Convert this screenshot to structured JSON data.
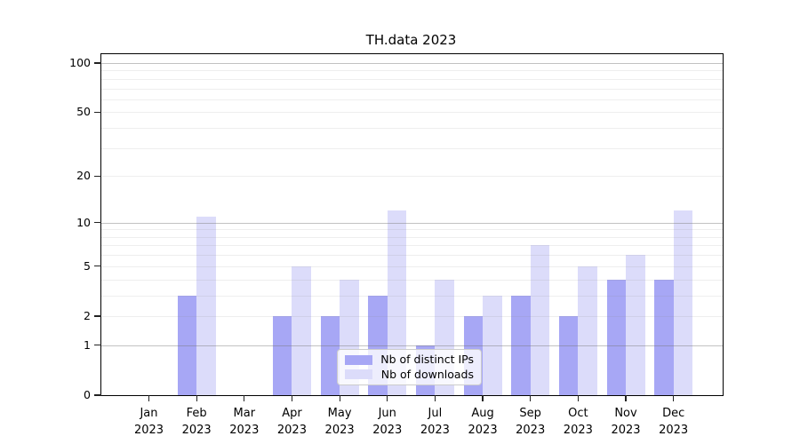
{
  "chart_data": {
    "type": "bar",
    "title": "TH.data 2023",
    "categories": [
      "Jan\n2023",
      "Feb\n2023",
      "Mar\n2023",
      "Apr\n2023",
      "May\n2023",
      "Jun\n2023",
      "Jul\n2023",
      "Aug\n2023",
      "Sep\n2023",
      "Oct\n2023",
      "Nov\n2023",
      "Dec\n2023"
    ],
    "series": [
      {
        "name": "Nb of distinct IPs",
        "color": "#a7a7f5",
        "values": [
          0,
          3,
          0,
          2,
          2,
          3,
          1,
          2,
          3,
          2,
          4,
          4
        ]
      },
      {
        "name": "Nb of downloads",
        "color": "#dcdcfa",
        "values": [
          0,
          11,
          0,
          5,
          4,
          12,
          4,
          3,
          7,
          5,
          6,
          12
        ]
      }
    ],
    "xlabel": "",
    "ylabel": "",
    "yscale": "log1p",
    "ylim": [
      0,
      113
    ],
    "y_ticks": [
      0,
      1,
      2,
      5,
      10,
      20,
      50,
      100
    ],
    "grid": true,
    "grid_major_lines": [
      1,
      10,
      100
    ],
    "grid_minor_lines": [
      2,
      3,
      4,
      5,
      6,
      7,
      8,
      9,
      20,
      30,
      40,
      50,
      60,
      70,
      80,
      90
    ],
    "legend_position": "lower center",
    "colors": {
      "series_dark": "#a7a7f5",
      "series_light": "#dcdcfa",
      "grid_major": "#c6c6c6",
      "grid_minor": "#e9e9e9",
      "axis": "#000000",
      "background": "#ffffff"
    }
  }
}
